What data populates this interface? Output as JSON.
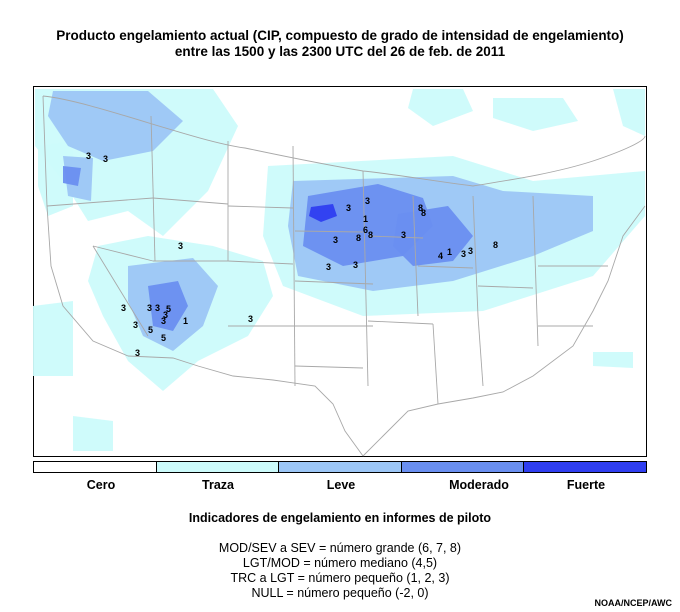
{
  "title": {
    "line1": "Producto engelamiento actual (CIP, compuesto de grado de intensidad de engelamiento)",
    "line2": "entre las 1500 y las 2300 UTC del 26 de feb. de 2011"
  },
  "legend": [
    {
      "label": "Cero",
      "color": "#ffffff"
    },
    {
      "label": "Traza",
      "color": "#ccfbfb"
    },
    {
      "label": "Leve",
      "color": "#9cc6f6"
    },
    {
      "label": "Moderado",
      "color": "#6a8ff0"
    },
    {
      "label": "Fuerte",
      "color": "#2f3ef0"
    }
  ],
  "pirep": {
    "heading": "Indicadores de engelamiento en informes de piloto",
    "rules": [
      "MOD/SEV a SEV = número grande (6, 7, 8)",
      "LGT/MOD = número mediano (4,5)",
      "TRC a LGT = número pequeño (1, 2, 3)",
      "NULL = número pequeño (-2, 0)"
    ]
  },
  "map": {
    "pilot_reports": [
      "3",
      "3",
      "3",
      "3",
      "3",
      "1",
      "3",
      "8",
      "8",
      "3",
      "1",
      "6",
      "8",
      "8",
      "3",
      "3",
      "4",
      "3",
      "8",
      "3",
      "3",
      "3",
      "5",
      "3",
      "1",
      "3",
      "3",
      "3",
      "3",
      "5",
      "3",
      "5"
    ]
  },
  "credit": "NOAA/NCEP/AWC"
}
